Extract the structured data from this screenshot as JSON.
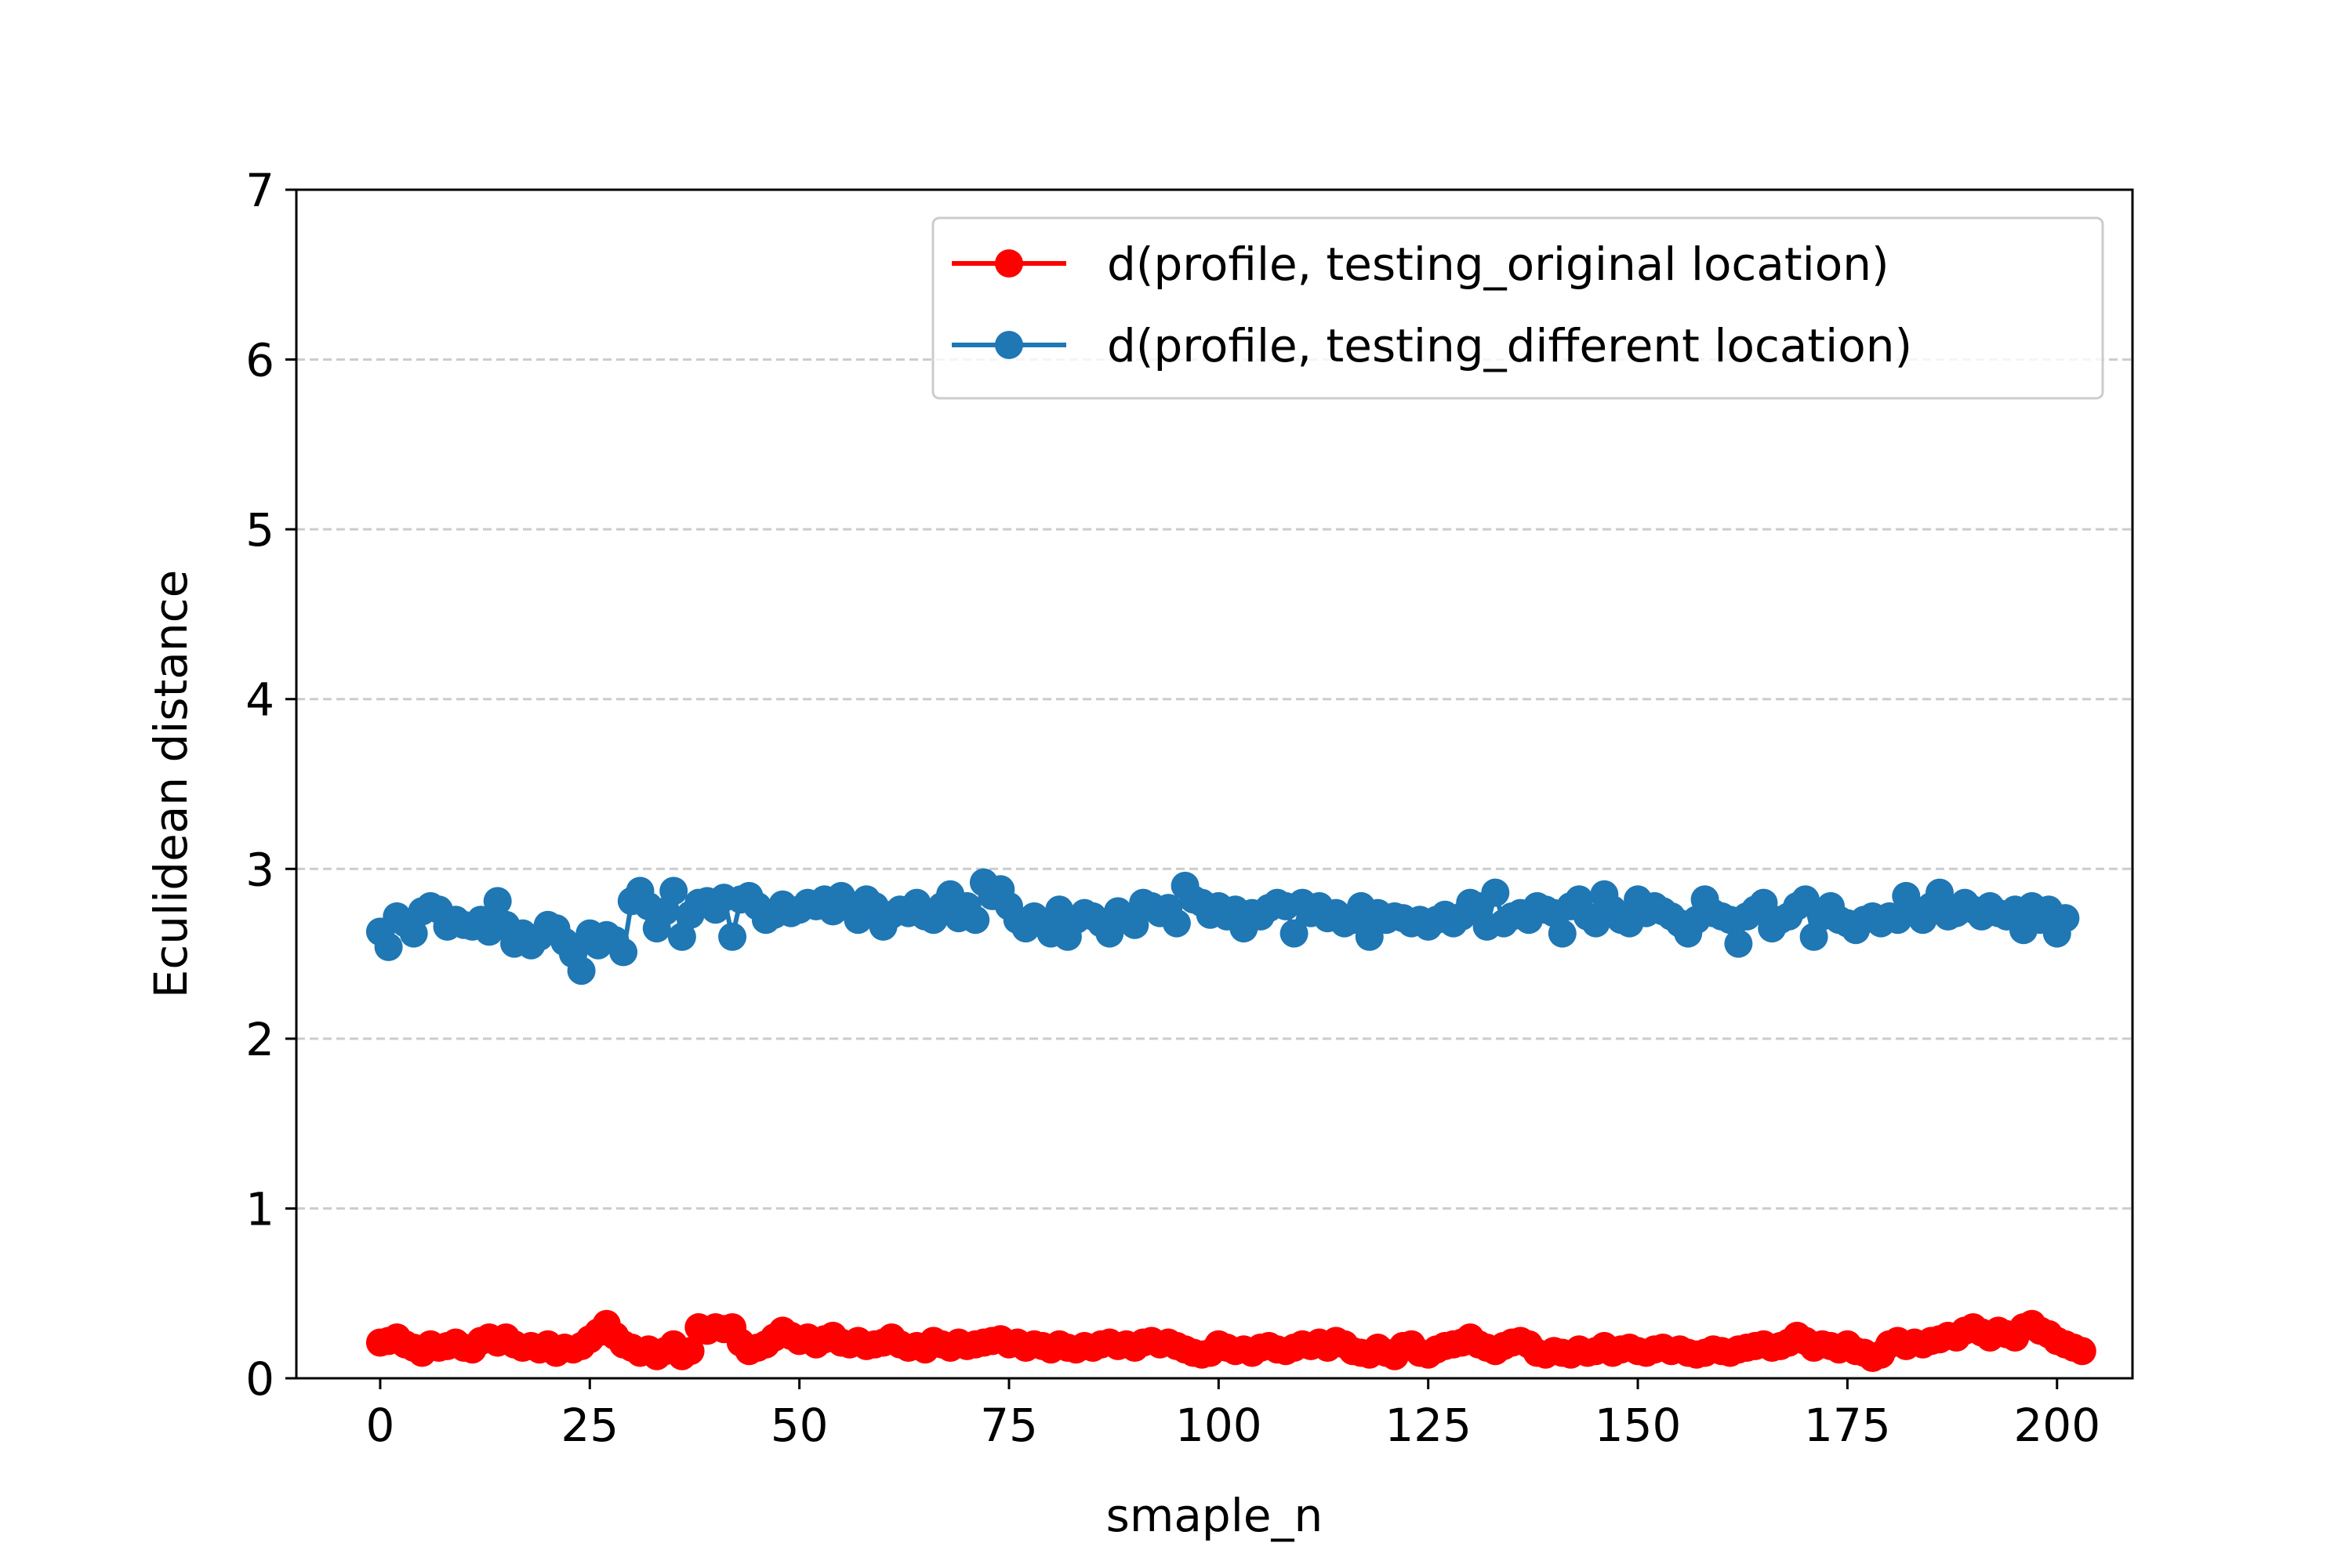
{
  "chart_data": {
    "type": "line",
    "title": "",
    "xlabel": "smaple_n",
    "ylabel": "Eculidean distance",
    "xlim": [
      -10,
      209
    ],
    "ylim": [
      0,
      7
    ],
    "xticks": [
      0,
      25,
      50,
      75,
      100,
      125,
      150,
      175,
      200
    ],
    "yticks": [
      0,
      1,
      2,
      3,
      4,
      5,
      6,
      7
    ],
    "grid": "y-dashed",
    "legend_position": "upper-right",
    "series": [
      {
        "name": "d(profile, testing_original location)",
        "color": "#ff0000",
        "marker": "circle",
        "values": [
          0.21,
          0.22,
          0.24,
          0.2,
          0.18,
          0.15,
          0.2,
          0.18,
          0.19,
          0.21,
          0.18,
          0.17,
          0.22,
          0.24,
          0.21,
          0.24,
          0.2,
          0.18,
          0.19,
          0.17,
          0.2,
          0.15,
          0.18,
          0.17,
          0.19,
          0.23,
          0.27,
          0.32,
          0.25,
          0.2,
          0.18,
          0.15,
          0.17,
          0.13,
          0.16,
          0.2,
          0.13,
          0.16,
          0.3,
          0.28,
          0.3,
          0.29,
          0.3,
          0.21,
          0.16,
          0.18,
          0.2,
          0.24,
          0.28,
          0.25,
          0.22,
          0.24,
          0.2,
          0.23,
          0.25,
          0.21,
          0.2,
          0.22,
          0.19,
          0.2,
          0.21,
          0.24,
          0.2,
          0.18,
          0.19,
          0.17,
          0.22,
          0.2,
          0.18,
          0.21,
          0.19,
          0.2,
          0.21,
          0.22,
          0.23,
          0.2,
          0.21,
          0.18,
          0.2,
          0.19,
          0.17,
          0.2,
          0.18,
          0.17,
          0.19,
          0.18,
          0.2,
          0.21,
          0.19,
          0.2,
          0.18,
          0.21,
          0.22,
          0.2,
          0.21,
          0.19,
          0.17,
          0.15,
          0.14,
          0.15,
          0.2,
          0.18,
          0.16,
          0.17,
          0.15,
          0.18,
          0.19,
          0.17,
          0.16,
          0.18,
          0.2,
          0.19,
          0.21,
          0.18,
          0.22,
          0.2,
          0.16,
          0.15,
          0.14,
          0.18,
          0.15,
          0.13,
          0.19,
          0.2,
          0.15,
          0.14,
          0.17,
          0.19,
          0.2,
          0.21,
          0.24,
          0.2,
          0.18,
          0.16,
          0.19,
          0.21,
          0.22,
          0.2,
          0.15,
          0.14,
          0.16,
          0.15,
          0.14,
          0.17,
          0.15,
          0.16,
          0.19,
          0.15,
          0.17,
          0.18,
          0.16,
          0.15,
          0.17,
          0.18,
          0.16,
          0.17,
          0.15,
          0.14,
          0.15,
          0.17,
          0.16,
          0.15,
          0.17,
          0.18,
          0.19,
          0.2,
          0.18,
          0.19,
          0.21,
          0.25,
          0.22,
          0.18,
          0.2,
          0.19,
          0.17,
          0.2,
          0.16,
          0.15,
          0.12,
          0.14,
          0.2,
          0.22,
          0.19,
          0.21,
          0.2,
          0.22,
          0.23,
          0.25,
          0.24,
          0.28,
          0.3,
          0.27,
          0.24,
          0.28,
          0.26,
          0.24,
          0.3,
          0.32,
          0.28,
          0.26,
          0.22,
          0.2,
          0.18,
          0.16
        ]
      },
      {
        "name": "d(profile, testing_different location)",
        "color": "#1f77b4",
        "marker": "circle",
        "values": [
          2.63,
          2.54,
          2.72,
          2.68,
          2.62,
          2.75,
          2.78,
          2.76,
          2.66,
          2.7,
          2.67,
          2.66,
          2.7,
          2.63,
          2.81,
          2.67,
          2.56,
          2.62,
          2.55,
          2.6,
          2.67,
          2.65,
          2.57,
          2.5,
          2.4,
          2.62,
          2.55,
          2.61,
          2.58,
          2.51,
          2.81,
          2.87,
          2.78,
          2.65,
          2.75,
          2.87,
          2.6,
          2.73,
          2.8,
          2.81,
          2.76,
          2.83,
          2.6,
          2.82,
          2.84,
          2.78,
          2.7,
          2.73,
          2.79,
          2.74,
          2.76,
          2.8,
          2.78,
          2.82,
          2.75,
          2.84,
          2.77,
          2.7,
          2.82,
          2.78,
          2.66,
          2.73,
          2.76,
          2.74,
          2.8,
          2.72,
          2.7,
          2.78,
          2.85,
          2.71,
          2.78,
          2.7,
          2.92,
          2.84,
          2.88,
          2.78,
          2.7,
          2.65,
          2.72,
          2.68,
          2.62,
          2.76,
          2.6,
          2.7,
          2.74,
          2.72,
          2.68,
          2.62,
          2.75,
          2.72,
          2.67,
          2.8,
          2.78,
          2.74,
          2.77,
          2.68,
          2.9,
          2.82,
          2.8,
          2.73,
          2.78,
          2.72,
          2.76,
          2.65,
          2.74,
          2.72,
          2.77,
          2.8,
          2.78,
          2.62,
          2.8,
          2.74,
          2.78,
          2.71,
          2.74,
          2.68,
          2.7,
          2.78,
          2.6,
          2.74,
          2.7,
          2.72,
          2.71,
          2.68,
          2.7,
          2.66,
          2.7,
          2.73,
          2.68,
          2.72,
          2.8,
          2.78,
          2.66,
          2.86,
          2.68,
          2.72,
          2.74,
          2.7,
          2.78,
          2.76,
          2.74,
          2.62,
          2.78,
          2.82,
          2.72,
          2.68,
          2.85,
          2.76,
          2.7,
          2.68,
          2.82,
          2.74,
          2.78,
          2.75,
          2.72,
          2.68,
          2.62,
          2.7,
          2.82,
          2.74,
          2.72,
          2.7,
          2.56,
          2.72,
          2.76,
          2.8,
          2.65,
          2.7,
          2.72,
          2.78,
          2.82,
          2.6,
          2.72,
          2.78,
          2.7,
          2.68,
          2.64,
          2.7,
          2.72,
          2.68,
          2.72,
          2.7,
          2.84,
          2.76,
          2.7,
          2.78,
          2.86,
          2.72,
          2.74,
          2.8,
          2.76,
          2.72,
          2.78,
          2.74,
          2.72,
          2.76,
          2.64,
          2.78,
          2.7,
          2.76,
          2.62,
          2.71
        ]
      }
    ]
  }
}
